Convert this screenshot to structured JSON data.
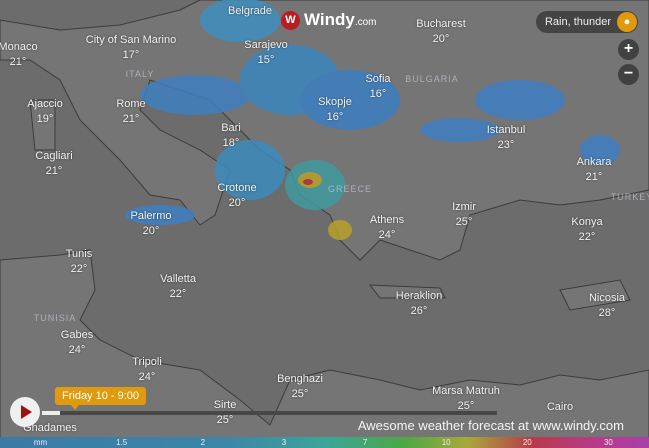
{
  "logo": {
    "name": "Windy",
    "suffix": ".com"
  },
  "overlay": {
    "label": "Rain, thunder",
    "icon": "drop-icon"
  },
  "zoom": {
    "in": "+",
    "out": "−"
  },
  "timeline": {
    "time_label": "Friday 10 - 9:00",
    "progress": 0.04
  },
  "footer": {
    "text": "Awesome weather forecast at www.windy.com"
  },
  "legend": {
    "unit": "mm",
    "values": [
      "1.5",
      "2",
      "3",
      "7",
      "10",
      "20",
      "30"
    ]
  },
  "countries": [
    "ITALY",
    "BULGARIA",
    "GREECE",
    "TURKEY",
    "TUNISIA"
  ],
  "cities": [
    {
      "name": "Monaco",
      "temp": "21°"
    },
    {
      "name": "City of San Marino",
      "temp": "17°"
    },
    {
      "name": "Rome",
      "temp": "21°"
    },
    {
      "name": "Ajaccio",
      "temp": "19°"
    },
    {
      "name": "Bari",
      "temp": "18°"
    },
    {
      "name": "Sarajevo",
      "temp": "15°"
    },
    {
      "name": "Belgrade",
      "temp": ""
    },
    {
      "name": "Bucharest",
      "temp": "20°"
    },
    {
      "name": "Sofia",
      "temp": "16°"
    },
    {
      "name": "Skopje",
      "temp": "16°"
    },
    {
      "name": "Istanbul",
      "temp": "23°"
    },
    {
      "name": "Ankara",
      "temp": "21°"
    },
    {
      "name": "Cagliari",
      "temp": "21°"
    },
    {
      "name": "Crotone",
      "temp": "20°"
    },
    {
      "name": "Palermo",
      "temp": "20°"
    },
    {
      "name": "Athens",
      "temp": "24°"
    },
    {
      "name": "Izmir",
      "temp": "25°"
    },
    {
      "name": "Konya",
      "temp": "22°"
    },
    {
      "name": "Tunis",
      "temp": "22°"
    },
    {
      "name": "Valletta",
      "temp": "22°"
    },
    {
      "name": "Heraklion",
      "temp": "26°"
    },
    {
      "name": "Nicosia",
      "temp": "28°"
    },
    {
      "name": "Gabes",
      "temp": "24°"
    },
    {
      "name": "Tripoli",
      "temp": "24°"
    },
    {
      "name": "Benghazi",
      "temp": "25°"
    },
    {
      "name": "Sirte",
      "temp": "25°"
    },
    {
      "name": "Marsa Matruh",
      "temp": "25°"
    },
    {
      "name": "Ghadames",
      "temp": ""
    },
    {
      "name": "Cairo",
      "temp": ""
    }
  ]
}
